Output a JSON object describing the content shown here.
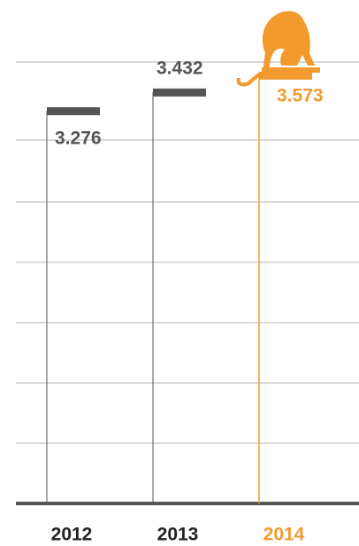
{
  "chart_data": {
    "type": "bar",
    "categories": [
      "2012",
      "2013",
      "2014"
    ],
    "values": [
      3.276,
      3.432,
      3.573
    ],
    "colors": [
      "#555555",
      "#555555",
      "#f39a2e"
    ],
    "ylim": [
      0,
      4.2
    ]
  }
}
